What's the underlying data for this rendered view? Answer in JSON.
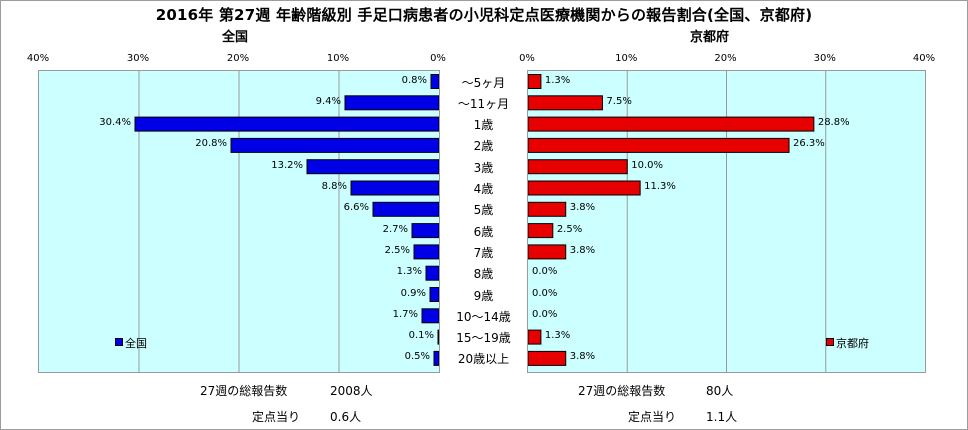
{
  "title": "2016年 第27週 年齢階級別 手足口病患者の小児科定点医療機関からの報告割合(全国、京都府)",
  "chart_data": [
    {
      "type": "bar",
      "orientation": "horizontal",
      "direction": "right-to-left",
      "title": "全国",
      "legend": "全国",
      "legend_position": "bottom-left",
      "color": "#0000e6",
      "xlim": [
        0,
        40
      ],
      "x_ticks": [
        "40%",
        "30%",
        "20%",
        "10%",
        "0%"
      ],
      "grid": true,
      "categories": [
        "〜5ヶ月",
        "〜11ヶ月",
        "1歳",
        "2歳",
        "3歳",
        "4歳",
        "5歳",
        "6歳",
        "7歳",
        "8歳",
        "9歳",
        "10〜14歳",
        "15〜19歳",
        "20歳以上"
      ],
      "values": [
        0.8,
        9.4,
        30.4,
        20.8,
        13.2,
        8.8,
        6.6,
        2.7,
        2.5,
        1.3,
        0.9,
        1.7,
        0.1,
        0.5
      ],
      "labels": [
        "0.8%",
        "9.4%",
        "30.4%",
        "20.8%",
        "13.2%",
        "8.8%",
        "6.6%",
        "2.7%",
        "2.5%",
        "1.3%",
        "0.9%",
        "1.7%",
        "0.1%",
        "0.5%"
      ]
    },
    {
      "type": "bar",
      "orientation": "horizontal",
      "direction": "left-to-right",
      "title": "京都府",
      "legend": "京都府",
      "legend_position": "bottom-right",
      "color": "#e60000",
      "xlim": [
        0,
        40
      ],
      "x_ticks": [
        "0%",
        "10%",
        "20%",
        "30%",
        "40%"
      ],
      "grid": true,
      "categories": [
        "〜5ヶ月",
        "〜11ヶ月",
        "1歳",
        "2歳",
        "3歳",
        "4歳",
        "5歳",
        "6歳",
        "7歳",
        "8歳",
        "9歳",
        "10〜14歳",
        "15〜19歳",
        "20歳以上"
      ],
      "values": [
        1.3,
        7.5,
        28.8,
        26.3,
        10.0,
        11.3,
        3.8,
        2.5,
        3.8,
        0.0,
        0.0,
        0.0,
        1.3,
        3.8
      ],
      "labels": [
        "1.3%",
        "7.5%",
        "28.8%",
        "26.3%",
        "10.0%",
        "11.3%",
        "3.8%",
        "2.5%",
        "3.8%",
        "0.0%",
        "0.0%",
        "0.0%",
        "1.3%",
        "3.8%"
      ]
    }
  ],
  "footer": {
    "national": {
      "total_label": "27週の総報告数",
      "total_value": "2008人",
      "per_label": "定点当り",
      "per_value": "0.6人"
    },
    "kyoto": {
      "total_label": "27週の総報告数",
      "total_value": "80人",
      "per_label": "定点当り",
      "per_value": "1.1人"
    }
  }
}
